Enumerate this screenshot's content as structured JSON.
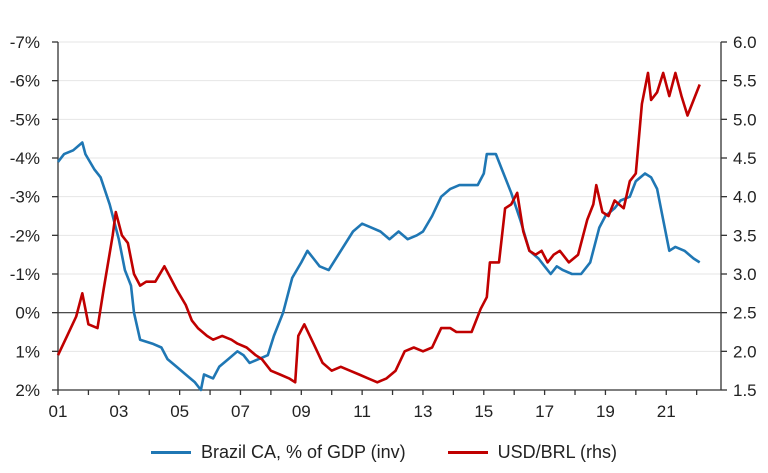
{
  "chart_data": {
    "type": "line",
    "x_labels": [
      "01",
      "03",
      "05",
      "07",
      "09",
      "11",
      "13",
      "15",
      "17",
      "19",
      "21"
    ],
    "x_range": [
      2001,
      2022.8
    ],
    "left_axis": {
      "ticks": [
        -7,
        -6,
        -5,
        -4,
        -3,
        -2,
        -1,
        0,
        1,
        2
      ],
      "tick_labels": [
        "-7%",
        "-6%",
        "-5%",
        "-4%",
        "-3%",
        "-2%",
        "-1%",
        "0%",
        "1%",
        "2%"
      ],
      "range": [
        -7,
        2
      ],
      "inverted": true
    },
    "right_axis": {
      "ticks": [
        6.0,
        5.5,
        5.0,
        4.5,
        4.0,
        3.5,
        3.0,
        2.5,
        2.0,
        1.5
      ],
      "tick_labels": [
        "6.0",
        "5.5",
        "5.0",
        "4.5",
        "4.0",
        "3.5",
        "3.0",
        "2.5",
        "2.0",
        "1.5"
      ],
      "range": [
        1.5,
        6.0
      ]
    },
    "grid": true,
    "legend_position": "bottom",
    "series": [
      {
        "name": "Brazil CA, % of GDP (inv)",
        "axis": "left",
        "color": "#1f77b4",
        "points": [
          [
            2001.0,
            -3.9
          ],
          [
            2001.2,
            -4.1
          ],
          [
            2001.5,
            -4.2
          ],
          [
            2001.8,
            -4.4
          ],
          [
            2001.9,
            -4.1
          ],
          [
            2002.2,
            -3.7
          ],
          [
            2002.4,
            -3.5
          ],
          [
            2002.7,
            -2.8
          ],
          [
            2003.0,
            -1.9
          ],
          [
            2003.2,
            -1.1
          ],
          [
            2003.4,
            -0.7
          ],
          [
            2003.5,
            0.0
          ],
          [
            2003.7,
            0.7
          ],
          [
            2004.1,
            0.8
          ],
          [
            2004.4,
            0.9
          ],
          [
            2004.6,
            1.2
          ],
          [
            2004.9,
            1.4
          ],
          [
            2005.2,
            1.6
          ],
          [
            2005.5,
            1.8
          ],
          [
            2005.7,
            2.0
          ],
          [
            2005.8,
            1.6
          ],
          [
            2006.1,
            1.7
          ],
          [
            2006.3,
            1.4
          ],
          [
            2006.6,
            1.2
          ],
          [
            2006.9,
            1.0
          ],
          [
            2007.1,
            1.1
          ],
          [
            2007.3,
            1.3
          ],
          [
            2007.6,
            1.2
          ],
          [
            2007.9,
            1.1
          ],
          [
            2008.1,
            0.6
          ],
          [
            2008.4,
            0.0
          ],
          [
            2008.7,
            -0.9
          ],
          [
            2009.0,
            -1.3
          ],
          [
            2009.2,
            -1.6
          ],
          [
            2009.4,
            -1.4
          ],
          [
            2009.6,
            -1.2
          ],
          [
            2009.9,
            -1.1
          ],
          [
            2010.3,
            -1.6
          ],
          [
            2010.7,
            -2.1
          ],
          [
            2011.0,
            -2.3
          ],
          [
            2011.3,
            -2.2
          ],
          [
            2011.6,
            -2.1
          ],
          [
            2011.9,
            -1.9
          ],
          [
            2012.2,
            -2.1
          ],
          [
            2012.5,
            -1.9
          ],
          [
            2012.8,
            -2.0
          ],
          [
            2013.0,
            -2.1
          ],
          [
            2013.3,
            -2.5
          ],
          [
            2013.6,
            -3.0
          ],
          [
            2013.9,
            -3.2
          ],
          [
            2014.2,
            -3.3
          ],
          [
            2014.5,
            -3.3
          ],
          [
            2014.8,
            -3.3
          ],
          [
            2015.0,
            -3.6
          ],
          [
            2015.1,
            -4.1
          ],
          [
            2015.4,
            -4.1
          ],
          [
            2015.6,
            -3.7
          ],
          [
            2015.9,
            -3.1
          ],
          [
            2016.2,
            -2.4
          ],
          [
            2016.5,
            -1.6
          ],
          [
            2016.8,
            -1.4
          ],
          [
            2017.0,
            -1.2
          ],
          [
            2017.2,
            -1.0
          ],
          [
            2017.4,
            -1.2
          ],
          [
            2017.6,
            -1.1
          ],
          [
            2017.9,
            -1.0
          ],
          [
            2018.2,
            -1.0
          ],
          [
            2018.5,
            -1.3
          ],
          [
            2018.8,
            -2.2
          ],
          [
            2019.0,
            -2.5
          ],
          [
            2019.3,
            -2.7
          ],
          [
            2019.5,
            -2.9
          ],
          [
            2019.8,
            -3.0
          ],
          [
            2020.0,
            -3.4
          ],
          [
            2020.3,
            -3.6
          ],
          [
            2020.5,
            -3.5
          ],
          [
            2020.7,
            -3.2
          ],
          [
            2020.9,
            -2.4
          ],
          [
            2021.1,
            -1.6
          ],
          [
            2021.3,
            -1.7
          ],
          [
            2021.6,
            -1.6
          ],
          [
            2021.9,
            -1.4
          ],
          [
            2022.1,
            -1.3
          ]
        ]
      },
      {
        "name": "USD/BRL (rhs)",
        "axis": "right",
        "color": "#c00000",
        "points": [
          [
            2001.0,
            1.95
          ],
          [
            2001.3,
            2.2
          ],
          [
            2001.6,
            2.45
          ],
          [
            2001.8,
            2.75
          ],
          [
            2002.0,
            2.35
          ],
          [
            2002.3,
            2.3
          ],
          [
            2002.5,
            2.8
          ],
          [
            2002.8,
            3.5
          ],
          [
            2002.9,
            3.8
          ],
          [
            2003.1,
            3.5
          ],
          [
            2003.3,
            3.4
          ],
          [
            2003.5,
            3.0
          ],
          [
            2003.7,
            2.85
          ],
          [
            2003.9,
            2.9
          ],
          [
            2004.2,
            2.9
          ],
          [
            2004.5,
            3.1
          ],
          [
            2004.7,
            2.95
          ],
          [
            2004.9,
            2.8
          ],
          [
            2005.2,
            2.6
          ],
          [
            2005.4,
            2.4
          ],
          [
            2005.6,
            2.3
          ],
          [
            2005.9,
            2.2
          ],
          [
            2006.1,
            2.15
          ],
          [
            2006.4,
            2.2
          ],
          [
            2006.7,
            2.15
          ],
          [
            2006.9,
            2.1
          ],
          [
            2007.2,
            2.05
          ],
          [
            2007.5,
            1.95
          ],
          [
            2007.7,
            1.9
          ],
          [
            2008.0,
            1.75
          ],
          [
            2008.3,
            1.7
          ],
          [
            2008.6,
            1.65
          ],
          [
            2008.8,
            1.6
          ],
          [
            2008.9,
            2.2
          ],
          [
            2009.1,
            2.35
          ],
          [
            2009.4,
            2.1
          ],
          [
            2009.7,
            1.85
          ],
          [
            2010.0,
            1.75
          ],
          [
            2010.3,
            1.8
          ],
          [
            2010.6,
            1.75
          ],
          [
            2010.9,
            1.7
          ],
          [
            2011.2,
            1.65
          ],
          [
            2011.5,
            1.6
          ],
          [
            2011.8,
            1.65
          ],
          [
            2012.1,
            1.75
          ],
          [
            2012.4,
            2.0
          ],
          [
            2012.7,
            2.05
          ],
          [
            2013.0,
            2.0
          ],
          [
            2013.3,
            2.05
          ],
          [
            2013.6,
            2.3
          ],
          [
            2013.9,
            2.3
          ],
          [
            2014.1,
            2.25
          ],
          [
            2014.3,
            2.25
          ],
          [
            2014.6,
            2.25
          ],
          [
            2014.9,
            2.55
          ],
          [
            2015.1,
            2.7
          ],
          [
            2015.2,
            3.15
          ],
          [
            2015.5,
            3.15
          ],
          [
            2015.7,
            3.85
          ],
          [
            2015.9,
            3.9
          ],
          [
            2016.1,
            4.05
          ],
          [
            2016.3,
            3.55
          ],
          [
            2016.5,
            3.3
          ],
          [
            2016.7,
            3.25
          ],
          [
            2016.9,
            3.3
          ],
          [
            2017.1,
            3.15
          ],
          [
            2017.3,
            3.25
          ],
          [
            2017.5,
            3.3
          ],
          [
            2017.8,
            3.15
          ],
          [
            2018.1,
            3.25
          ],
          [
            2018.4,
            3.7
          ],
          [
            2018.6,
            3.9
          ],
          [
            2018.7,
            4.15
          ],
          [
            2018.9,
            3.8
          ],
          [
            2019.1,
            3.75
          ],
          [
            2019.3,
            3.95
          ],
          [
            2019.6,
            3.85
          ],
          [
            2019.8,
            4.2
          ],
          [
            2020.0,
            4.3
          ],
          [
            2020.2,
            5.2
          ],
          [
            2020.4,
            5.6
          ],
          [
            2020.5,
            5.25
          ],
          [
            2020.7,
            5.35
          ],
          [
            2020.9,
            5.6
          ],
          [
            2021.1,
            5.3
          ],
          [
            2021.3,
            5.6
          ],
          [
            2021.5,
            5.3
          ],
          [
            2021.7,
            5.05
          ],
          [
            2021.9,
            5.25
          ],
          [
            2022.1,
            5.45
          ]
        ]
      }
    ]
  }
}
